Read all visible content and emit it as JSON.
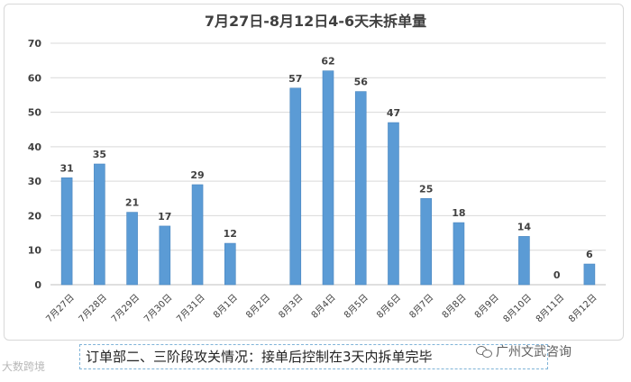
{
  "chart_data": {
    "type": "bar",
    "title": "7月27日-8月12日4-6天未拆单量",
    "categories": [
      "7月27日",
      "7月28日",
      "7月29日",
      "7月30日",
      "7月31日",
      "8月1日",
      "8月2日",
      "8月3日",
      "8月4日",
      "8月5日",
      "8月6日",
      "8月7日",
      "8月8日",
      "8月9日",
      "8月10日",
      "8月11日",
      "8月12日"
    ],
    "values": [
      31,
      35,
      21,
      17,
      29,
      12,
      null,
      57,
      62,
      56,
      47,
      25,
      18,
      null,
      14,
      0,
      6
    ],
    "data_labels": [
      "31",
      "35",
      "21",
      "17",
      "29",
      "12",
      "",
      "57",
      "62",
      "56",
      "47",
      "25",
      "18",
      "",
      "14",
      "0",
      "6"
    ],
    "ylim": [
      0,
      70
    ],
    "yticks": [
      0,
      10,
      20,
      30,
      40,
      50,
      60,
      70
    ],
    "grid": true,
    "bar_color": "#5b9bd5"
  },
  "caption": "订单部二、三阶段攻关情况：接单后控制在3天内拆单完毕",
  "watermark_left": "大数跨境",
  "watermark_right": "广州文武咨询"
}
